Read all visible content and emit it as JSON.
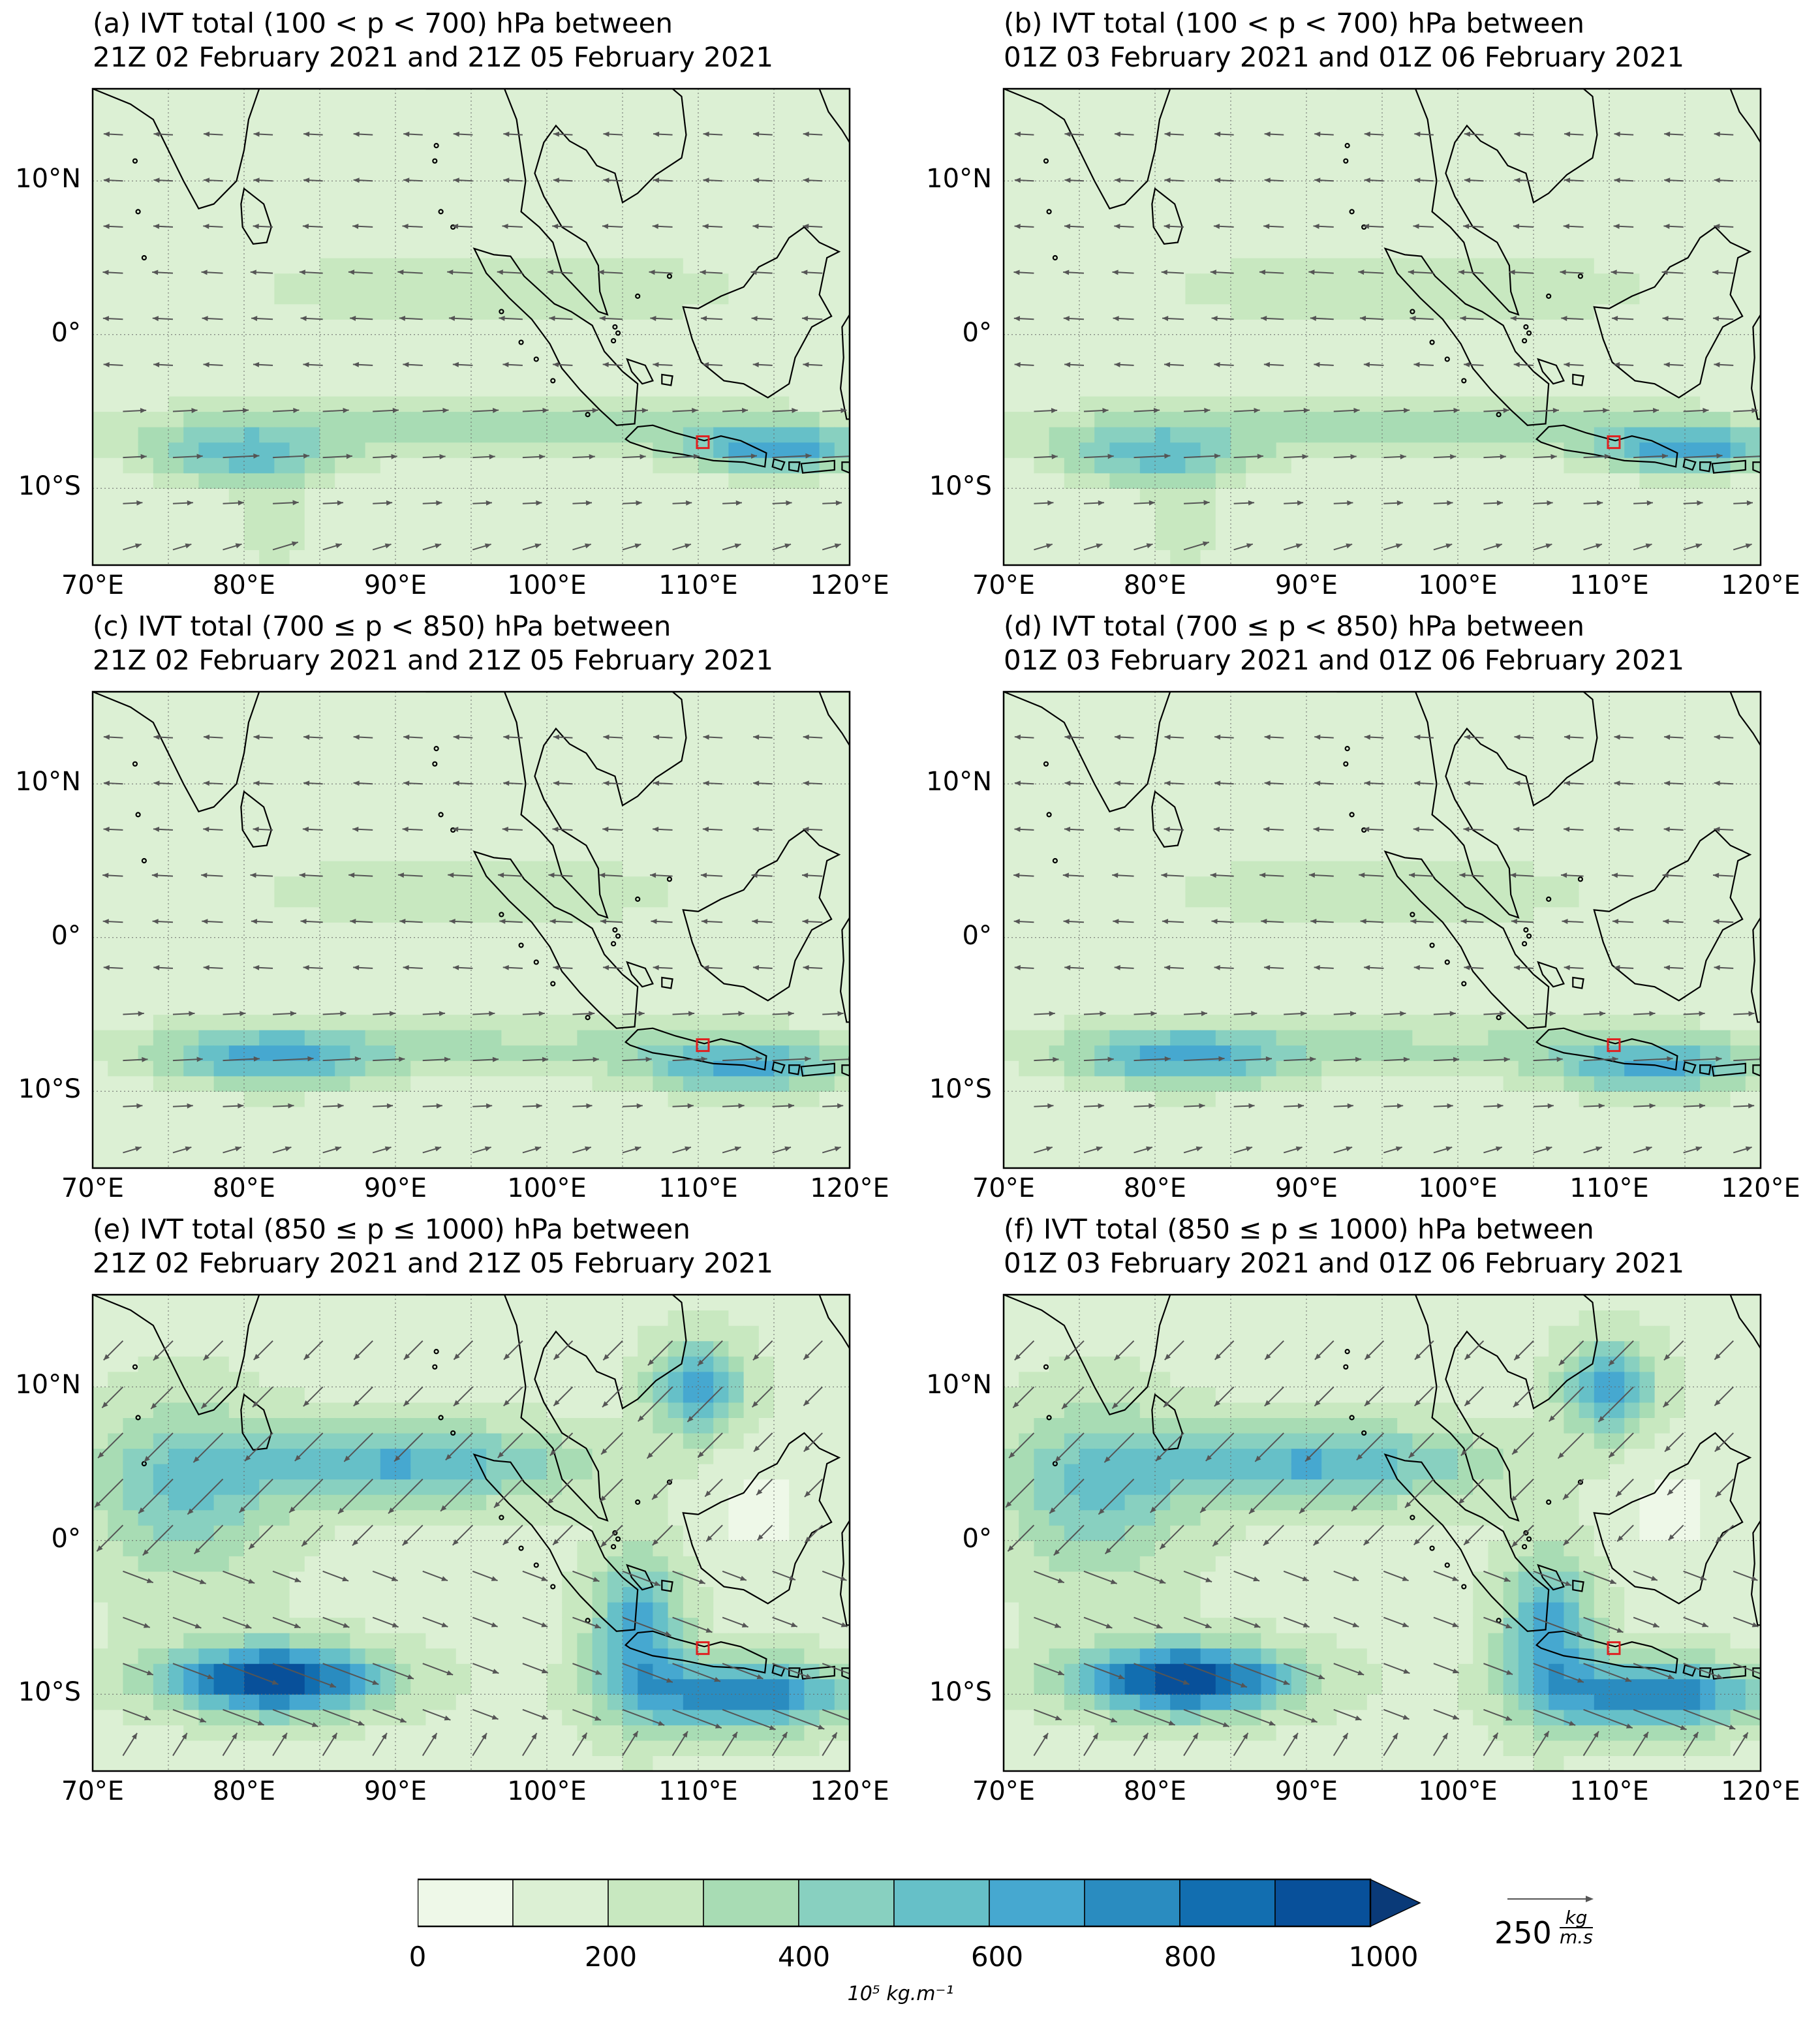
{
  "panels": [
    {
      "label": "(a)",
      "line1": "(a) IVT total (100 < p < 700) hPa between",
      "line2": "21Z 02 February 2021 and 21Z 05 February 2021",
      "level": "upper"
    },
    {
      "label": "(b)",
      "line1": "(b) IVT total (100 < p < 700) hPa between",
      "line2": "01Z 03 February 2021 and 01Z 06 February 2021",
      "level": "upper"
    },
    {
      "label": "(c)",
      "line1": "(c) IVT total (700 ≤ p < 850) hPa between",
      "line2": "21Z 02 February 2021 and 21Z 05 February 2021",
      "level": "middle"
    },
    {
      "label": "(d)",
      "line1": "(d) IVT total (700 ≤ p < 850) hPa between",
      "line2": "01Z 03 February 2021 and 01Z 06 February 2021",
      "level": "middle"
    },
    {
      "label": "(e)",
      "line1": "(e) IVT total (850 ≤ p ≤ 1000) hPa between",
      "line2": "21Z 02 February 2021 and 21Z 05 February 2021",
      "level": "lower"
    },
    {
      "label": "(f)",
      "line1": "(f) IVT total (850 ≤ p ≤ 1000) hPa between",
      "line2": "01Z 03 February 2021 and 01Z 06 February 2021",
      "level": "lower"
    }
  ],
  "axes": {
    "lat_labels": [
      "10°N",
      "0°",
      "10°S"
    ],
    "lat_values": [
      10,
      0,
      -10
    ],
    "lon_labels": [
      "70°E",
      "80°E",
      "90°E",
      "100°E",
      "110°E",
      "120°E"
    ],
    "lon_values": [
      70,
      80,
      90,
      100,
      110,
      120
    ],
    "lon_range": [
      70,
      120
    ],
    "lat_range": [
      -15,
      16
    ]
  },
  "colorbar": {
    "ticks": [
      "0",
      "200",
      "400",
      "600",
      "800",
      "1000"
    ],
    "unit": "10⁵ kg.m⁻¹",
    "levels": [
      0,
      100,
      200,
      300,
      400,
      500,
      600,
      700,
      800,
      900,
      1000
    ],
    "colors": [
      "#eef8e8",
      "#dcf0d4",
      "#c8e8c0",
      "#a8dcb4",
      "#88d0c0",
      "#66c0c8",
      "#46a8d0",
      "#2a8cc0",
      "#126eb0",
      "#08509a",
      "#0a3a78"
    ]
  },
  "reference_vector": {
    "value": "250",
    "unit_num": "kg",
    "unit_den": "m.s"
  },
  "target_box": {
    "lon": 110.3,
    "lat": -7.0,
    "color": "#e02020"
  }
}
